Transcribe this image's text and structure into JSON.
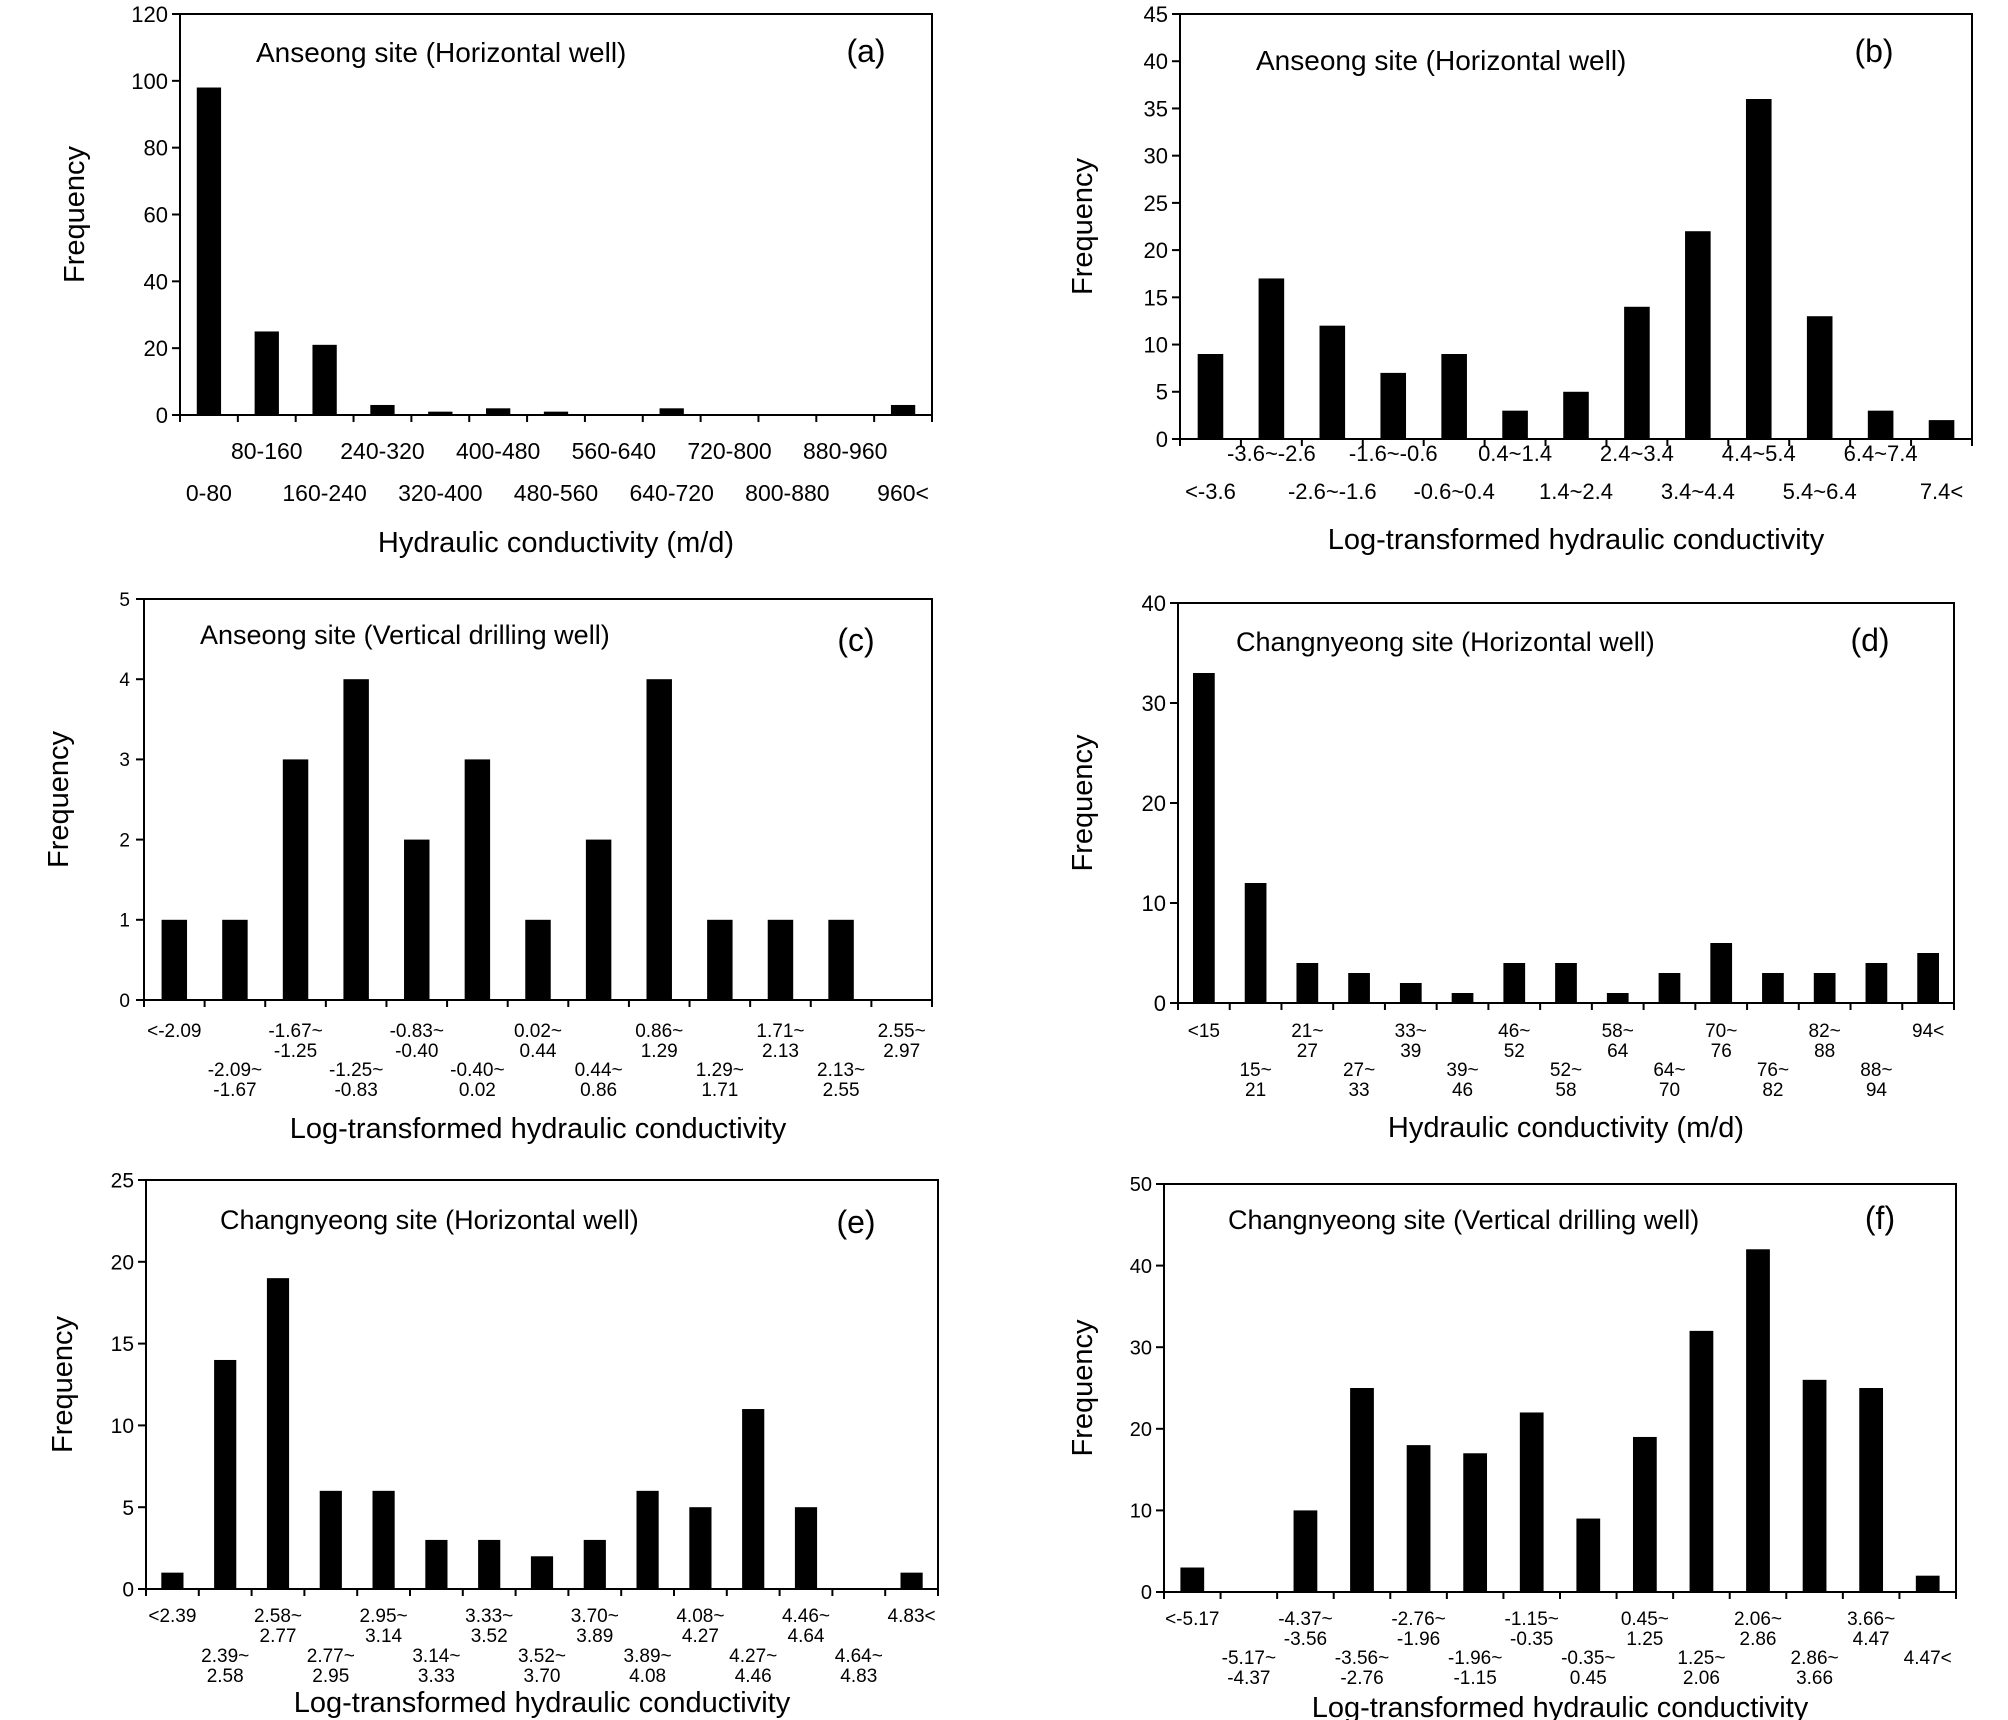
{
  "chart_data": [
    {
      "type": "bar",
      "panel": "(a)",
      "title": "Anseong site (Horizontal well)",
      "xlabel": "Hydraulic conductivity (m/d)",
      "ylabel": "Frequency",
      "ylim": [
        0,
        120
      ],
      "yticks": [
        0,
        20,
        40,
        60,
        80,
        100,
        120
      ],
      "categories": [
        "0-80",
        "80-160",
        "160-240",
        "240-320",
        "320-400",
        "400-480",
        "480-560",
        "560-640",
        "640-720",
        "720-800",
        "800-880",
        "880-960",
        "960<"
      ],
      "values": [
        98,
        25,
        21,
        3,
        1,
        2,
        1,
        0,
        2,
        0,
        0,
        0,
        3
      ]
    },
    {
      "type": "bar",
      "panel": "(b)",
      "title": "Anseong site (Horizontal well)",
      "xlabel": "Log-transformed hydraulic conductivity",
      "ylabel": "Frequency",
      "ylim": [
        0,
        45
      ],
      "yticks": [
        0,
        5,
        10,
        15,
        20,
        25,
        30,
        35,
        40,
        45
      ],
      "categories": [
        "<-3.6",
        "-3.6~-2.6",
        "-2.6~-1.6",
        "-1.6~-0.6",
        "-0.6~0.4",
        "0.4~1.4",
        "1.4~2.4",
        "2.4~3.4",
        "3.4~4.4",
        "4.4~5.4",
        "5.4~6.4",
        "6.4~7.4",
        "7.4<"
      ],
      "values": [
        9,
        17,
        12,
        7,
        9,
        3,
        5,
        14,
        22,
        36,
        13,
        3,
        2
      ]
    },
    {
      "type": "bar",
      "panel": "(c)",
      "title": "Anseong site (Vertical drilling well)",
      "xlabel": "Log-transformed hydraulic conductivity",
      "ylabel": "Frequency",
      "ylim": [
        0,
        5
      ],
      "yticks": [
        0,
        1,
        2,
        3,
        4,
        5
      ],
      "categories": [
        "<-2.09",
        "-2.09~\n-1.67",
        "-1.67~\n-1.25",
        "-1.25~\n-0.83",
        "-0.83~\n-0.40",
        "-0.40~\n0.02",
        "0.02~\n0.44",
        "0.44~\n0.86",
        "0.86~\n1.29",
        "1.29~\n1.71",
        "1.71~\n2.13",
        "2.13~\n2.55",
        "2.55~\n2.97"
      ],
      "values": [
        1,
        1,
        3,
        4,
        2,
        3,
        1,
        2,
        4,
        1,
        1,
        1,
        0
      ]
    },
    {
      "type": "bar",
      "panel": "(d)",
      "title": "Changnyeong site (Horizontal well)",
      "xlabel": "Hydraulic conductivity (m/d)",
      "ylabel": "Frequency",
      "ylim": [
        0,
        40
      ],
      "yticks": [
        0,
        10,
        20,
        30,
        40
      ],
      "categories": [
        "<15",
        "15~\n21",
        "21~\n27",
        "27~\n33",
        "33~\n39",
        "39~\n46",
        "46~\n52",
        "52~\n58",
        "58~\n64",
        "64~\n70",
        "70~\n76",
        "76~\n82",
        "82~\n88",
        "88~\n94",
        "94<"
      ],
      "values": [
        33,
        12,
        4,
        3,
        2,
        1,
        4,
        4,
        1,
        3,
        6,
        3,
        3,
        4,
        5
      ]
    },
    {
      "type": "bar",
      "panel": "(e)",
      "title": "Changnyeong site (Horizontal well)",
      "xlabel": "Log-transformed hydraulic conductivity",
      "ylabel": "Frequency",
      "ylim": [
        0,
        25
      ],
      "yticks": [
        0,
        5,
        10,
        15,
        20,
        25
      ],
      "categories": [
        "<2.39",
        "2.39~\n2.58",
        "2.58~\n2.77",
        "2.77~\n2.95",
        "2.95~\n3.14",
        "3.14~\n3.33",
        "3.33~\n3.52",
        "3.52~\n3.70",
        "3.70~\n3.89",
        "3.89~\n4.08",
        "4.08~\n4.27",
        "4.27~\n4.46",
        "4.46~\n4.64",
        "4.64~\n4.83",
        "4.83<"
      ],
      "values": [
        1,
        14,
        19,
        6,
        6,
        3,
        3,
        2,
        3,
        6,
        5,
        11,
        5,
        0,
        1
      ]
    },
    {
      "type": "bar",
      "panel": "(f)",
      "title": "Changnyeong site (Vertical drilling well)",
      "xlabel": "Log-transformed hydraulic conductivity",
      "ylabel": "Frequency",
      "ylim": [
        0,
        50
      ],
      "yticks": [
        0,
        10,
        20,
        30,
        40,
        50
      ],
      "categories": [
        "<-5.17",
        "-5.17~\n-4.37",
        "-4.37~\n-3.56",
        "-3.56~\n-2.76",
        "-2.76~\n-1.96",
        "-1.96~\n-1.15",
        "-1.15~\n-0.35",
        "-0.35~\n0.45",
        "0.45~\n1.25",
        "1.25~\n2.06",
        "2.06~\n2.86",
        "2.86~\n3.66",
        "3.66~\n4.47",
        "4.47<"
      ],
      "values": [
        3,
        0,
        10,
        25,
        18,
        17,
        22,
        9,
        19,
        32,
        42,
        26,
        25,
        2
      ]
    }
  ]
}
